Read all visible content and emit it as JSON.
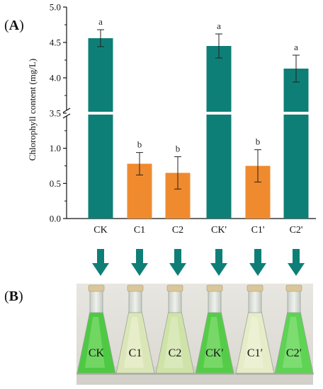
{
  "colors": {
    "teal": "#0e7f77",
    "orange": "#f08a2e",
    "arrow": "#0e7f77",
    "axis": "#111111",
    "error_bar": "#222222"
  },
  "panel_a": {
    "label": "A"
  },
  "panel_b": {
    "label": "B"
  },
  "flask_labels": [
    "CK",
    "C1",
    "C2",
    "CK′",
    "C1′",
    "C2′"
  ],
  "chart_data": {
    "type": "bar",
    "title": "",
    "xlabel": "",
    "ylabel": "Chlorophyll content (mg/L)",
    "categories": [
      "CK",
      "C1",
      "C2",
      "CK'",
      "C1'",
      "C2'"
    ],
    "values": [
      4.56,
      0.78,
      0.65,
      4.45,
      0.75,
      4.13
    ],
    "errors": [
      0.12,
      0.16,
      0.23,
      0.17,
      0.23,
      0.19
    ],
    "significance": [
      "a",
      "b",
      "b",
      "a",
      "b",
      "a"
    ],
    "bar_colors": [
      "teal",
      "orange",
      "orange",
      "teal",
      "orange",
      "teal"
    ],
    "axis_break": {
      "lower_range": [
        0,
        1.5
      ],
      "upper_range": [
        3.5,
        5.0
      ]
    },
    "yticks_lower": [
      "0.0",
      "0.5",
      "1.0"
    ],
    "yticks_upper": [
      "3.5",
      "4.0",
      "4.5",
      "5.0"
    ],
    "grid": false
  }
}
